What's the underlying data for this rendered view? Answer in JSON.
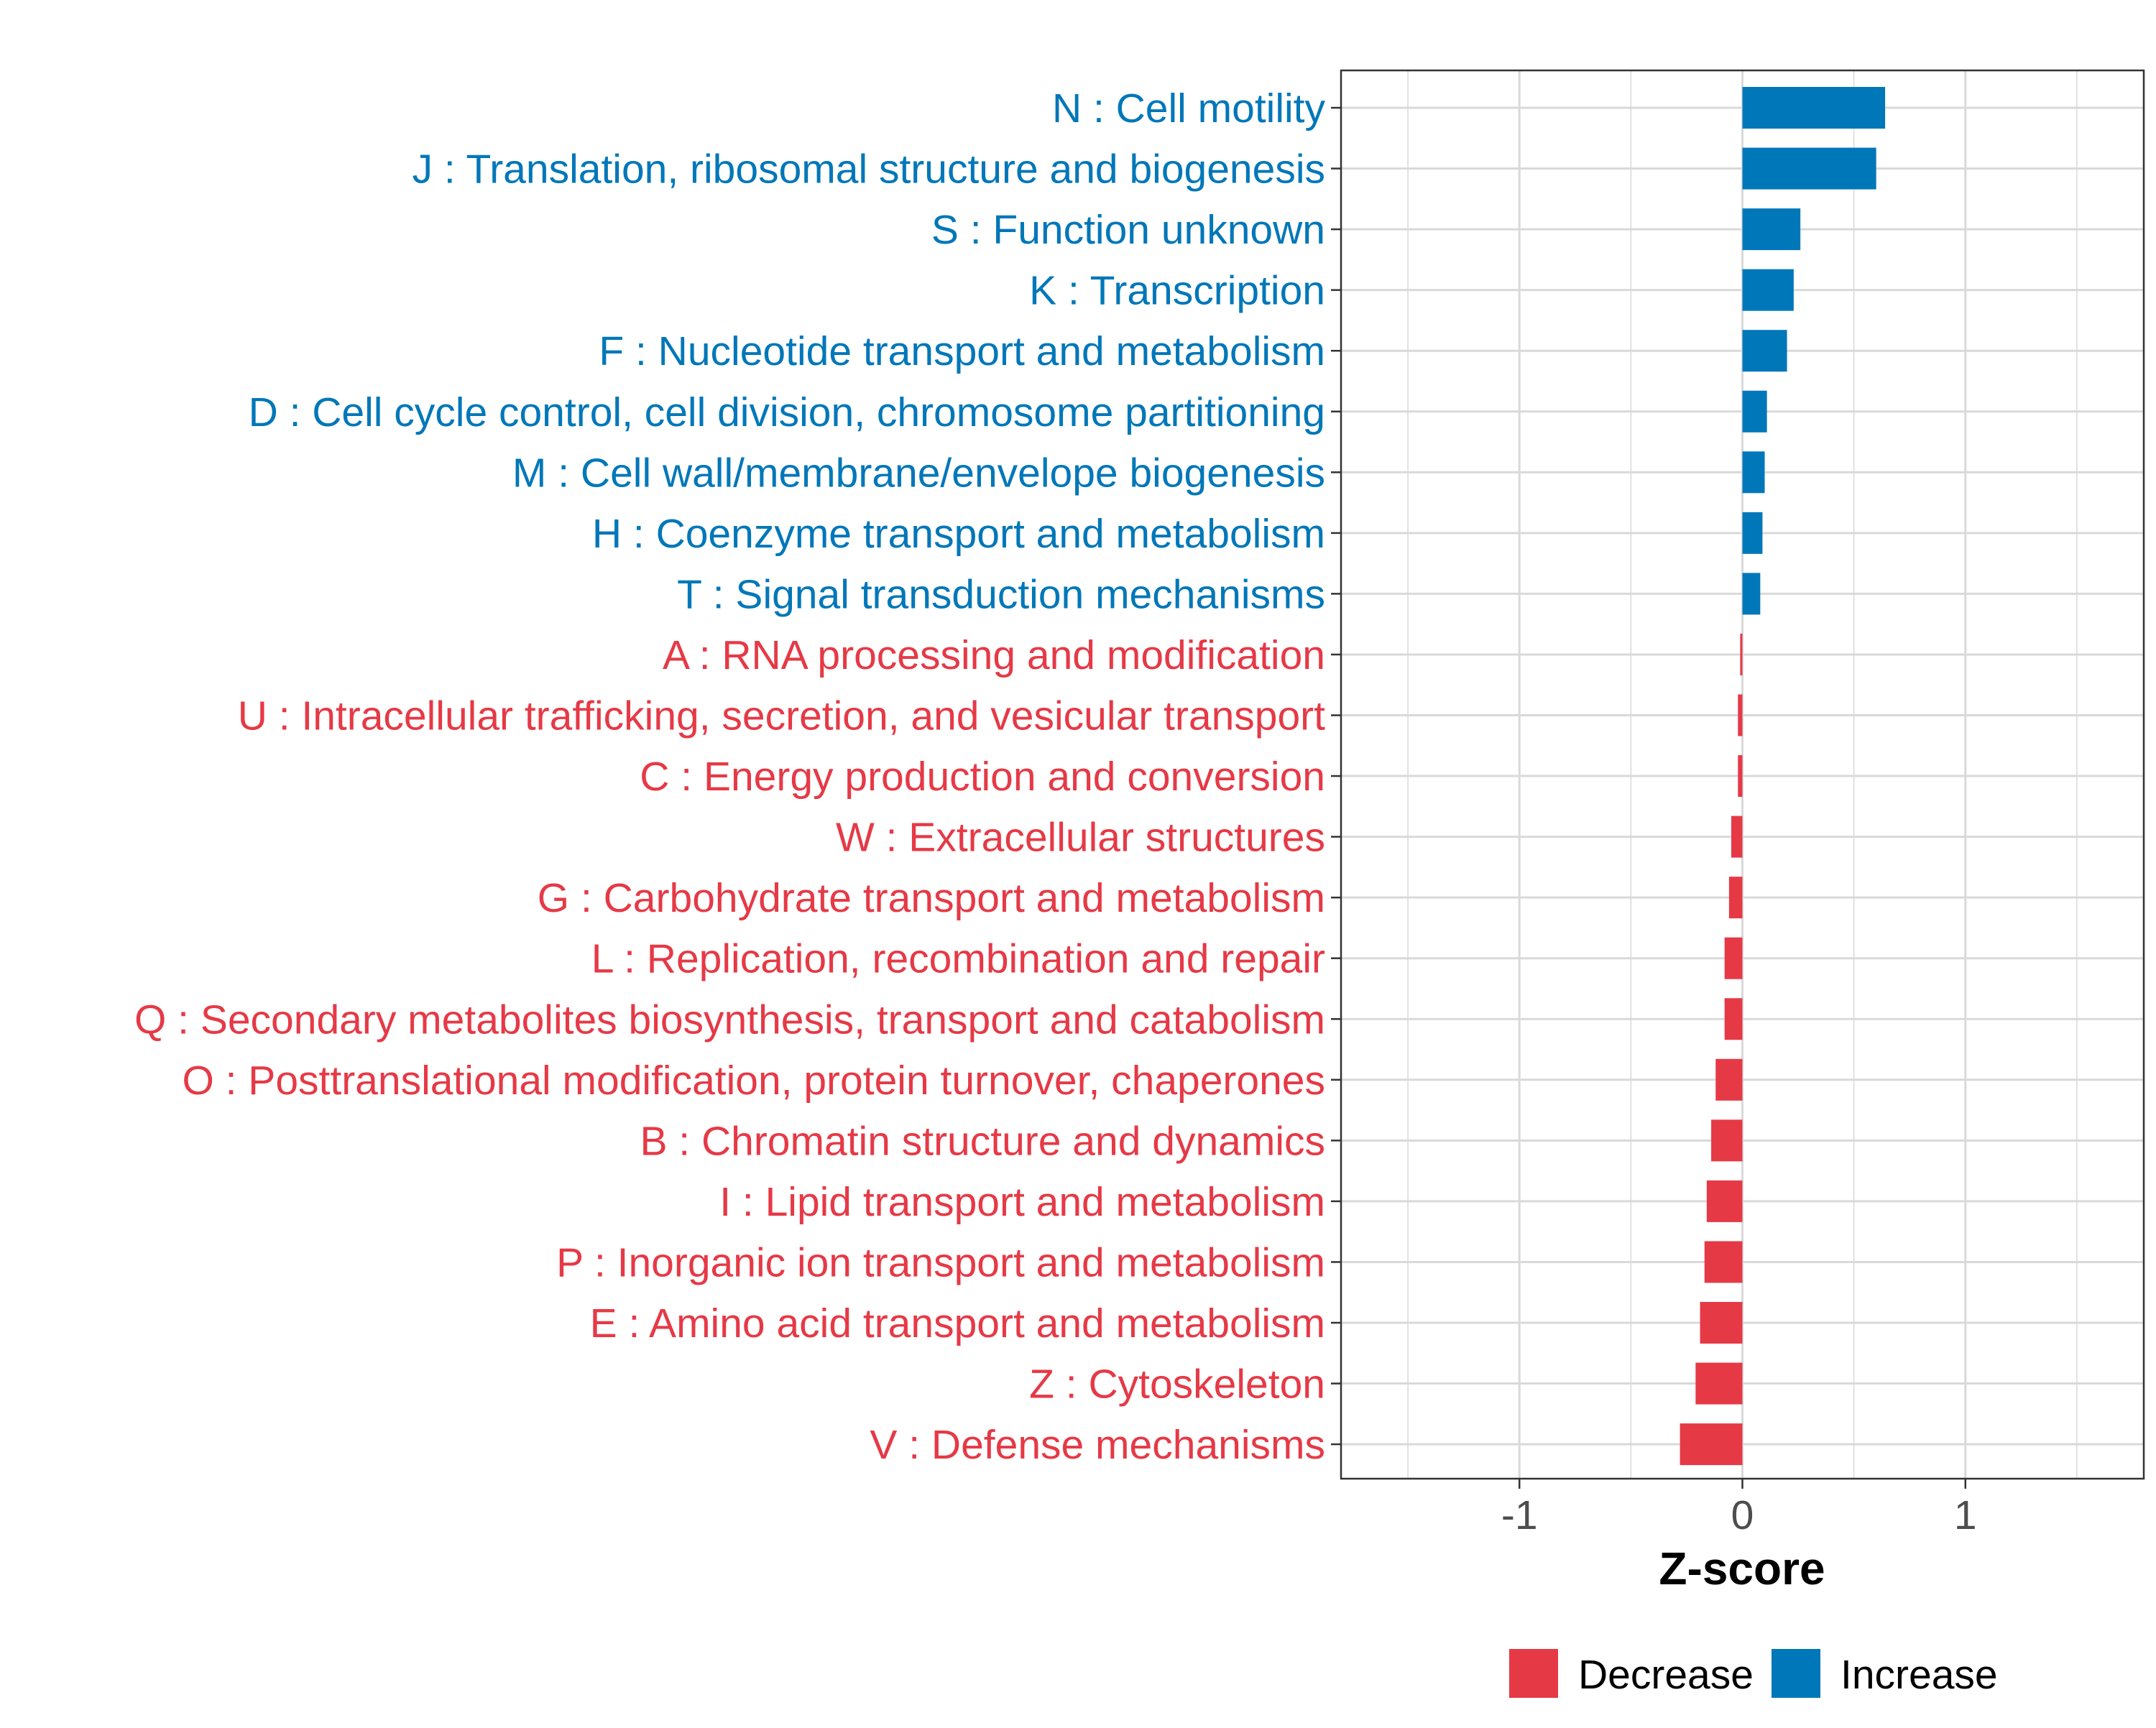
{
  "chart_data": {
    "type": "bar",
    "orientation": "horizontal",
    "title": "",
    "xlabel": "Z-score",
    "ylabel": "",
    "xlim": [
      -1.8,
      1.8
    ],
    "xticks": [
      -1,
      0,
      1
    ],
    "xtick_labels": [
      "-1",
      "0",
      "1"
    ],
    "grid": true,
    "legend_position": "bottom",
    "colors": {
      "Increase": "#0077b9",
      "Decrease": "#e63946"
    },
    "legend": [
      {
        "label": "Decrease",
        "color": "#e63946"
      },
      {
        "label": "Increase",
        "color": "#0077b9"
      }
    ],
    "categories": [
      "N : Cell motility",
      "J : Translation, ribosomal structure and biogenesis",
      "S : Function unknown",
      "K : Transcription",
      "F : Nucleotide transport and metabolism",
      "D : Cell cycle control, cell division, chromosome partitioning",
      "M : Cell wall/membrane/envelope biogenesis",
      "H : Coenzyme transport and metabolism",
      "T : Signal transduction mechanisms",
      "A : RNA processing and modification",
      "U : Intracellular trafficking, secretion, and vesicular transport",
      "C : Energy production and conversion",
      "W : Extracellular structures",
      "G : Carbohydrate transport and metabolism",
      "L : Replication, recombination and repair",
      "Q : Secondary metabolites biosynthesis, transport and catabolism",
      "O : Posttranslational modification, protein turnover, chaperones",
      "B : Chromatin structure and dynamics",
      "I : Lipid transport and metabolism",
      "P : Inorganic ion transport and metabolism",
      "E : Amino acid transport and metabolism",
      "Z : Cytoskeleton",
      "V : Defense mechanisms"
    ],
    "values": [
      0.64,
      0.6,
      0.26,
      0.23,
      0.2,
      0.11,
      0.1,
      0.09,
      0.08,
      -0.01,
      -0.02,
      -0.02,
      -0.05,
      -0.06,
      -0.08,
      -0.08,
      -0.12,
      -0.14,
      -0.16,
      -0.17,
      -0.19,
      -0.21,
      -0.28
    ],
    "groups": [
      "Increase",
      "Increase",
      "Increase",
      "Increase",
      "Increase",
      "Increase",
      "Increase",
      "Increase",
      "Increase",
      "Decrease",
      "Decrease",
      "Decrease",
      "Decrease",
      "Decrease",
      "Decrease",
      "Decrease",
      "Decrease",
      "Decrease",
      "Decrease",
      "Decrease",
      "Decrease",
      "Decrease",
      "Decrease"
    ]
  }
}
